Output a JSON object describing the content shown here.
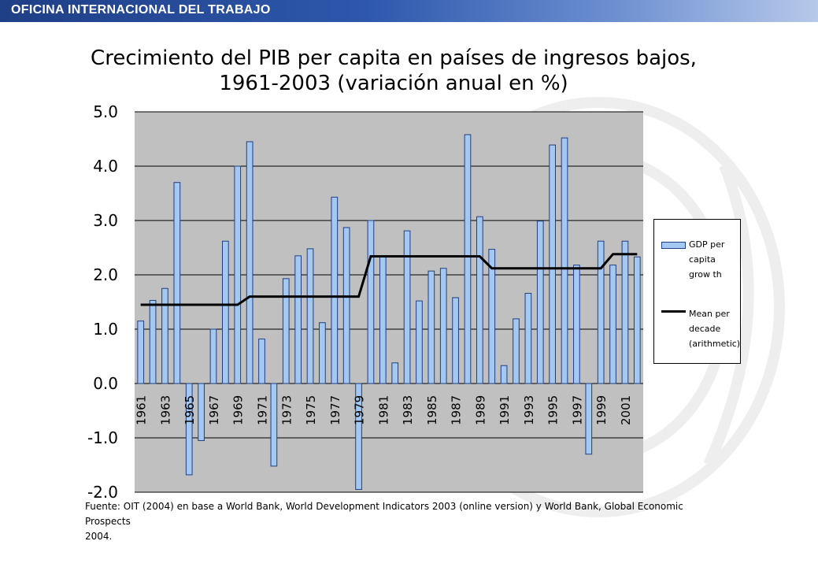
{
  "header": {
    "title": "OFICINA INTERNACIONAL DEL TRABAJO"
  },
  "chart_data": {
    "type": "bar",
    "title_line1": "Crecimiento del PIB per capita en países de ingresos bajos,",
    "title_line2": "1961-2003 (variación anual en %)",
    "xlabel": "",
    "ylabel": "",
    "ylim": [
      -2.0,
      5.0
    ],
    "yticks": [
      "5.0",
      "4.0",
      "3.0",
      "2.0",
      "1.0",
      "0.0",
      "-1.0",
      "-2.0"
    ],
    "grid": true,
    "legend_position": "right",
    "categories": [
      1961,
      1962,
      1963,
      1964,
      1965,
      1966,
      1967,
      1968,
      1969,
      1970,
      1971,
      1972,
      1973,
      1974,
      1975,
      1976,
      1977,
      1978,
      1979,
      1980,
      1981,
      1982,
      1983,
      1984,
      1985,
      1986,
      1987,
      1988,
      1989,
      1990,
      1991,
      1992,
      1993,
      1994,
      1995,
      1996,
      1997,
      1998,
      1999,
      2000,
      2001,
      2002
    ],
    "xtick_labels": [
      "1961",
      "1963",
      "1965",
      "1967",
      "1969",
      "1971",
      "1973",
      "1975",
      "1977",
      "1979",
      "1981",
      "1983",
      "1985",
      "1987",
      "1989",
      "1991",
      "1993",
      "1995",
      "1997",
      "1999",
      "2001"
    ],
    "series": [
      {
        "name": "GDP per capita growth",
        "type": "bar",
        "color": "#a4c8f0",
        "values": [
          1.15,
          1.53,
          1.75,
          3.7,
          -1.68,
          -1.05,
          1.0,
          2.62,
          4.0,
          4.45,
          0.82,
          -1.52,
          1.93,
          2.35,
          2.48,
          1.12,
          3.43,
          2.87,
          -1.95,
          3.0,
          2.33,
          0.38,
          2.81,
          1.52,
          2.07,
          2.12,
          1.58,
          4.58,
          3.07,
          2.47,
          0.33,
          1.19,
          1.66,
          2.99,
          4.39,
          4.52,
          2.18,
          -1.3,
          2.62,
          2.18,
          2.62,
          2.33
        ]
      },
      {
        "name": "Mean per decade (arithmetic)",
        "type": "line",
        "color": "#000000",
        "values": [
          1.45,
          1.45,
          1.45,
          1.45,
          1.45,
          1.45,
          1.45,
          1.45,
          1.45,
          1.6,
          1.6,
          1.6,
          1.6,
          1.6,
          1.6,
          1.6,
          1.6,
          1.6,
          1.6,
          2.34,
          2.34,
          2.34,
          2.34,
          2.34,
          2.34,
          2.34,
          2.34,
          2.34,
          2.34,
          2.12,
          2.12,
          2.12,
          2.12,
          2.12,
          2.12,
          2.12,
          2.12,
          2.12,
          2.12,
          2.38,
          2.38,
          2.38
        ]
      }
    ]
  },
  "legend": {
    "bar_label_lines": [
      "GDP per",
      "capita",
      "grow th"
    ],
    "line_label_lines": [
      "Mean per",
      "decade",
      "(arithmetic)"
    ]
  },
  "source": {
    "line1": "Fuente: OIT (2004) en base a World Bank, World Development Indicators 2003 (online version) y World Bank, Global Economic Prospects",
    "line2": "2004."
  },
  "colors": {
    "plot_background": "#c0c0c0",
    "bar_fill": "#a4c8f0",
    "bar_stroke": "#1f3f86",
    "mean_line": "#000000"
  }
}
